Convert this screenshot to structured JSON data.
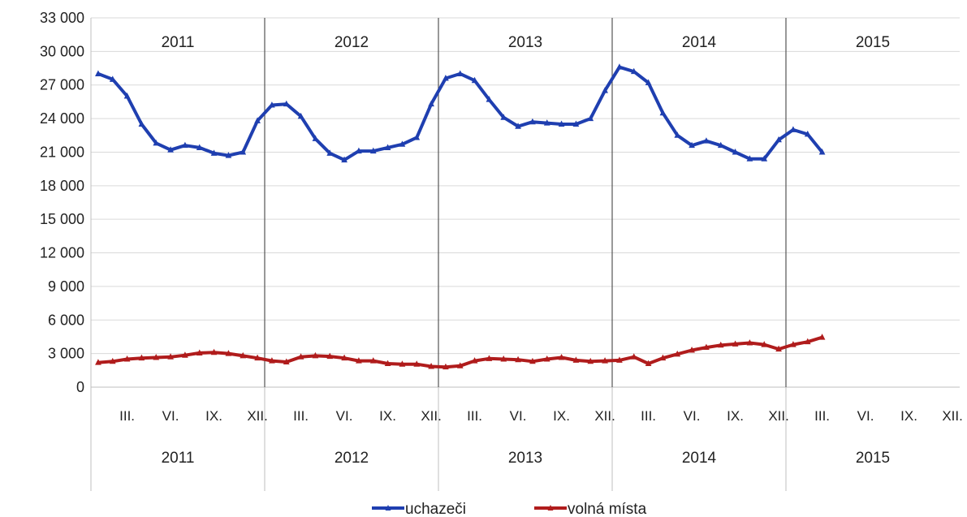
{
  "chart_data": {
    "type": "line",
    "title": "",
    "xlabel": "",
    "ylabel": "",
    "ylim": [
      0,
      33000
    ],
    "yticks": [
      0,
      3000,
      6000,
      9000,
      12000,
      15000,
      18000,
      21000,
      24000,
      27000,
      30000,
      33000
    ],
    "ytick_labels": [
      "0",
      "3 000",
      "6 000",
      "9 000",
      "12 000",
      "15 000",
      "18 000",
      "21 000",
      "24 000",
      "27 000",
      "30 000",
      "33 000"
    ],
    "years": [
      "2011",
      "2012",
      "2013",
      "2014",
      "2015"
    ],
    "month_tick_labels": [
      "III.",
      "VI.",
      "IX.",
      "XII."
    ],
    "grid": true,
    "legend_position": "bottom",
    "series": [
      {
        "name": "uchazeči",
        "color": "#1f3fb0",
        "values": [
          28000,
          27500,
          26000,
          23500,
          21800,
          21200,
          21600,
          21400,
          20900,
          20700,
          21000,
          23800,
          25200,
          25300,
          24200,
          22200,
          20900,
          20300,
          21100,
          21100,
          21400,
          21700,
          22300,
          25300,
          27600,
          28000,
          27400,
          25700,
          24100,
          23300,
          23700,
          23600,
          23500,
          23500,
          24000,
          26500,
          28600,
          28200,
          27200,
          24500,
          22500,
          21600,
          22000,
          21600,
          21000,
          20400,
          20400,
          22100,
          23000,
          22600,
          21000
        ]
      },
      {
        "name": "volná místa",
        "color": "#b01c1c",
        "values": [
          2200,
          2300,
          2500,
          2600,
          2650,
          2700,
          2850,
          3050,
          3100,
          3000,
          2800,
          2600,
          2350,
          2250,
          2700,
          2800,
          2750,
          2600,
          2350,
          2350,
          2100,
          2050,
          2050,
          1850,
          1800,
          1900,
          2350,
          2550,
          2500,
          2450,
          2300,
          2500,
          2650,
          2400,
          2300,
          2350,
          2400,
          2700,
          2100,
          2600,
          2950,
          3300,
          3550,
          3750,
          3850,
          3950,
          3800,
          3400,
          3800,
          4050,
          4450
        ]
      }
    ]
  }
}
